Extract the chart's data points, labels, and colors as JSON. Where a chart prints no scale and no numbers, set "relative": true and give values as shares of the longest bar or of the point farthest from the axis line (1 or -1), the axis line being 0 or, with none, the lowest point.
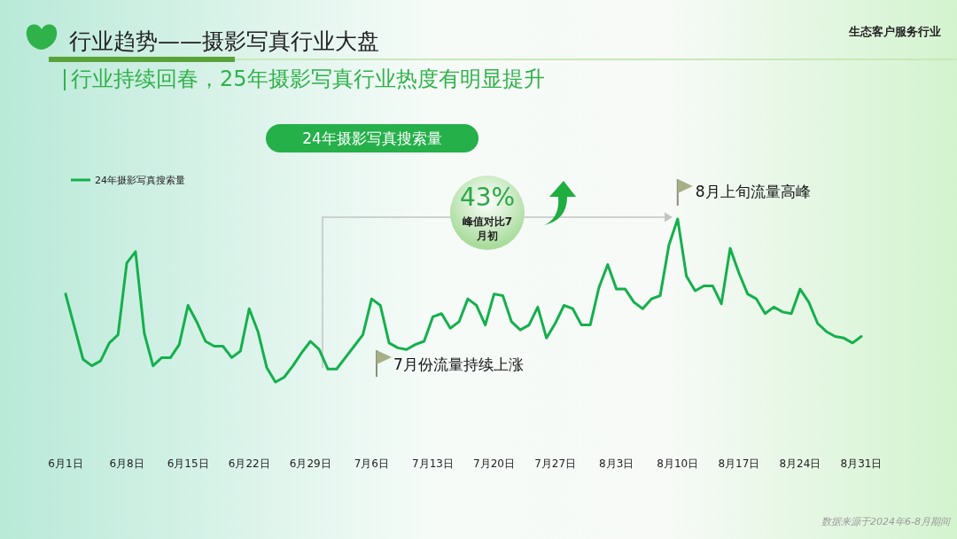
{
  "chart_data": {
    "type": "line",
    "title": "行业趋势——摄影写真行业大盘",
    "subtitle": "行业持续回春，25年摄影写真行业热度有明显提升",
    "relative": true,
    "legend": "top left",
    "x": [
      "--06-01",
      "--06-02",
      "--06-03",
      "--06-04",
      "--06-05",
      "--06-06",
      "--06-07",
      "--06-08",
      "--06-09",
      "--06-10",
      "--06-11",
      "--06-12",
      "--06-13",
      "--06-14",
      "--06-15",
      "--06-16",
      "--06-17",
      "--06-18",
      "--06-19",
      "--06-20",
      "--06-21",
      "--06-22",
      "--06-23",
      "--06-24",
      "--06-25",
      "--06-26",
      "--06-27",
      "--06-28",
      "--06-29",
      "--06-30",
      "--07-01",
      "--07-02",
      "--07-03",
      "--07-04",
      "--07-05",
      "--07-06",
      "--07-07",
      "--07-08",
      "--07-09",
      "--07-10",
      "--07-11",
      "--07-12",
      "--07-13",
      "--07-14",
      "--07-15",
      "--07-16",
      "--07-17",
      "--07-18",
      "--07-19",
      "--07-20",
      "--07-21",
      "--07-22",
      "--07-23",
      "--07-24",
      "--07-25",
      "--07-26",
      "--07-27",
      "--07-28",
      "--07-29",
      "--07-30",
      "--07-31",
      "--08-01",
      "--08-02",
      "--08-03",
      "--08-04",
      "--08-05",
      "--08-06",
      "--08-07",
      "--08-08",
      "--08-09",
      "--08-10",
      "--08-11",
      "--08-12",
      "--08-13",
      "--08-14",
      "--08-15",
      "--08-16",
      "--08-17",
      "--08-18",
      "--08-19",
      "--08-20",
      "--08-21",
      "--08-22",
      "--08-23",
      "--08-24",
      "--08-25",
      "--08-26",
      "--08-27",
      "--08-28",
      "--08-29",
      "--08-30",
      "--08-31"
    ],
    "xlim": [
      "--06-01",
      "--08-31"
    ],
    "xticks": [
      {
        "value": "--06-01",
        "label": "6月1日"
      },
      {
        "value": "--06-08",
        "label": "6月8日"
      },
      {
        "value": "--06-15",
        "label": "6月15日"
      },
      {
        "value": "--06-22",
        "label": "6月22日"
      },
      {
        "value": "--06-29",
        "label": "6月29日"
      },
      {
        "value": "--07-06",
        "label": "7月6日"
      },
      {
        "value": "--07-13",
        "label": "7月13日"
      },
      {
        "value": "--07-20",
        "label": "7月20日"
      },
      {
        "value": "--07-27",
        "label": "7月27日"
      },
      {
        "value": "--08-03",
        "label": "8月3日"
      },
      {
        "value": "--08-10",
        "label": "8月10日"
      },
      {
        "value": "--08-17",
        "label": "8月17日"
      },
      {
        "value": "--08-24",
        "label": "8月24日"
      },
      {
        "value": "--08-31",
        "label": "8月31日"
      }
    ],
    "series": [
      {
        "name": "24年摄影写真搜索量",
        "color": "#14b04c",
        "values": [
          0.54,
          0.34,
          0.14,
          0.1,
          0.13,
          0.24,
          0.29,
          0.73,
          0.8,
          0.3,
          0.1,
          0.15,
          0.15,
          0.23,
          0.47,
          0.37,
          0.25,
          0.22,
          0.22,
          0.15,
          0.19,
          0.45,
          0.31,
          0.09,
          0,
          0.03,
          0.1,
          0.18,
          0.25,
          0.2,
          0.08,
          0.08,
          0.15,
          0.22,
          0.29,
          0.51,
          0.47,
          0.24,
          0.21,
          0.2,
          0.23,
          0.25,
          0.4,
          0.42,
          0.33,
          0.37,
          0.51,
          0.47,
          0.35,
          0.54,
          0.53,
          0.37,
          0.32,
          0.35,
          0.46,
          0.27,
          0.36,
          0.47,
          0.45,
          0.35,
          0.35,
          0.58,
          0.72,
          0.57,
          0.57,
          0.49,
          0.45,
          0.51,
          0.53,
          0.84,
          1,
          0.65,
          0.56,
          0.59,
          0.59,
          0.48,
          0.82,
          0.67,
          0.54,
          0.51,
          0.42,
          0.46,
          0.43,
          0.42,
          0.57,
          0.49,
          0.36,
          0.31,
          0.28,
          0.27,
          0.24,
          0.28
        ]
      }
    ],
    "annotations": [
      "24年摄影写真搜索量",
      "生态客户服务行业",
      "数据来源于2024年6-8月期间",
      {
        "text": "8月上旬流量高峰",
        "x": "--08-10",
        "y": 1
      },
      "7月份流量持续上涨",
      "43%",
      "峰值对比7月初"
    ]
  }
}
